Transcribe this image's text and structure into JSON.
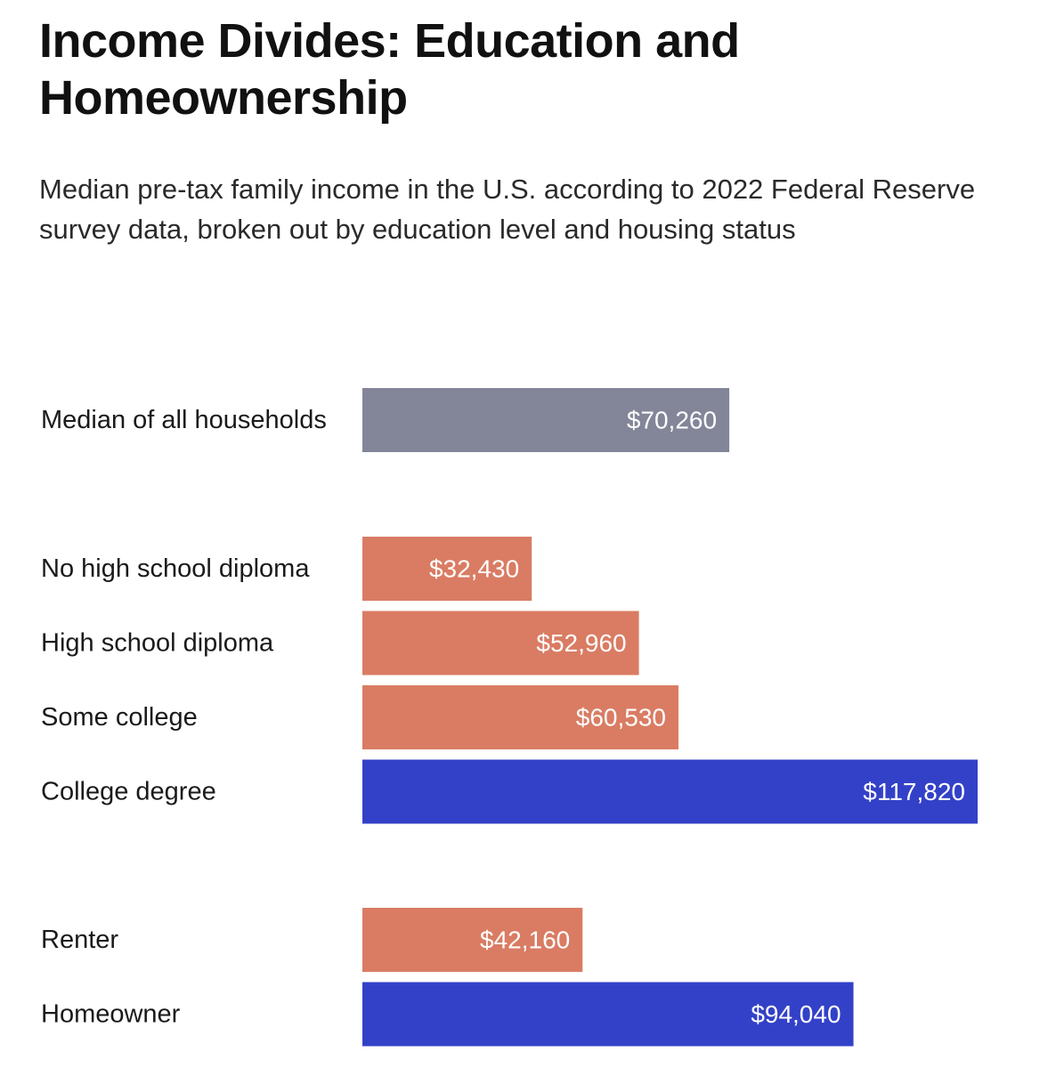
{
  "header": {
    "title": "Income Divides: Education and Homeownership",
    "subtitle": "Median pre-tax family income in the U.S. according to 2022 Federal Reserve survey data, broken out by education level and housing status"
  },
  "colors": {
    "overall": "#838598",
    "low": "#d97c63",
    "high": "#3341c8"
  },
  "chart_data": {
    "type": "bar",
    "orientation": "horizontal",
    "title": "Income Divides: Education and Homeownership",
    "xlabel": "",
    "ylabel": "",
    "xlim": [
      0,
      117820
    ],
    "grid": false,
    "groups": [
      {
        "name": "overall",
        "bars": [
          {
            "category": "Median of all households",
            "value": 70260,
            "label": "$70,260",
            "color_key": "overall"
          }
        ]
      },
      {
        "name": "education",
        "bars": [
          {
            "category": "No high school diploma",
            "value": 32430,
            "label": "$32,430",
            "color_key": "low"
          },
          {
            "category": "High school diploma",
            "value": 52960,
            "label": "$52,960",
            "color_key": "low"
          },
          {
            "category": "Some college",
            "value": 60530,
            "label": "$60,530",
            "color_key": "low"
          },
          {
            "category": "College degree",
            "value": 117820,
            "label": "$117,820",
            "color_key": "high"
          }
        ]
      },
      {
        "name": "housing",
        "bars": [
          {
            "category": "Renter",
            "value": 42160,
            "label": "$42,160",
            "color_key": "low"
          },
          {
            "category": "Homeowner",
            "value": 94040,
            "label": "$94,040",
            "color_key": "high"
          }
        ]
      }
    ]
  }
}
